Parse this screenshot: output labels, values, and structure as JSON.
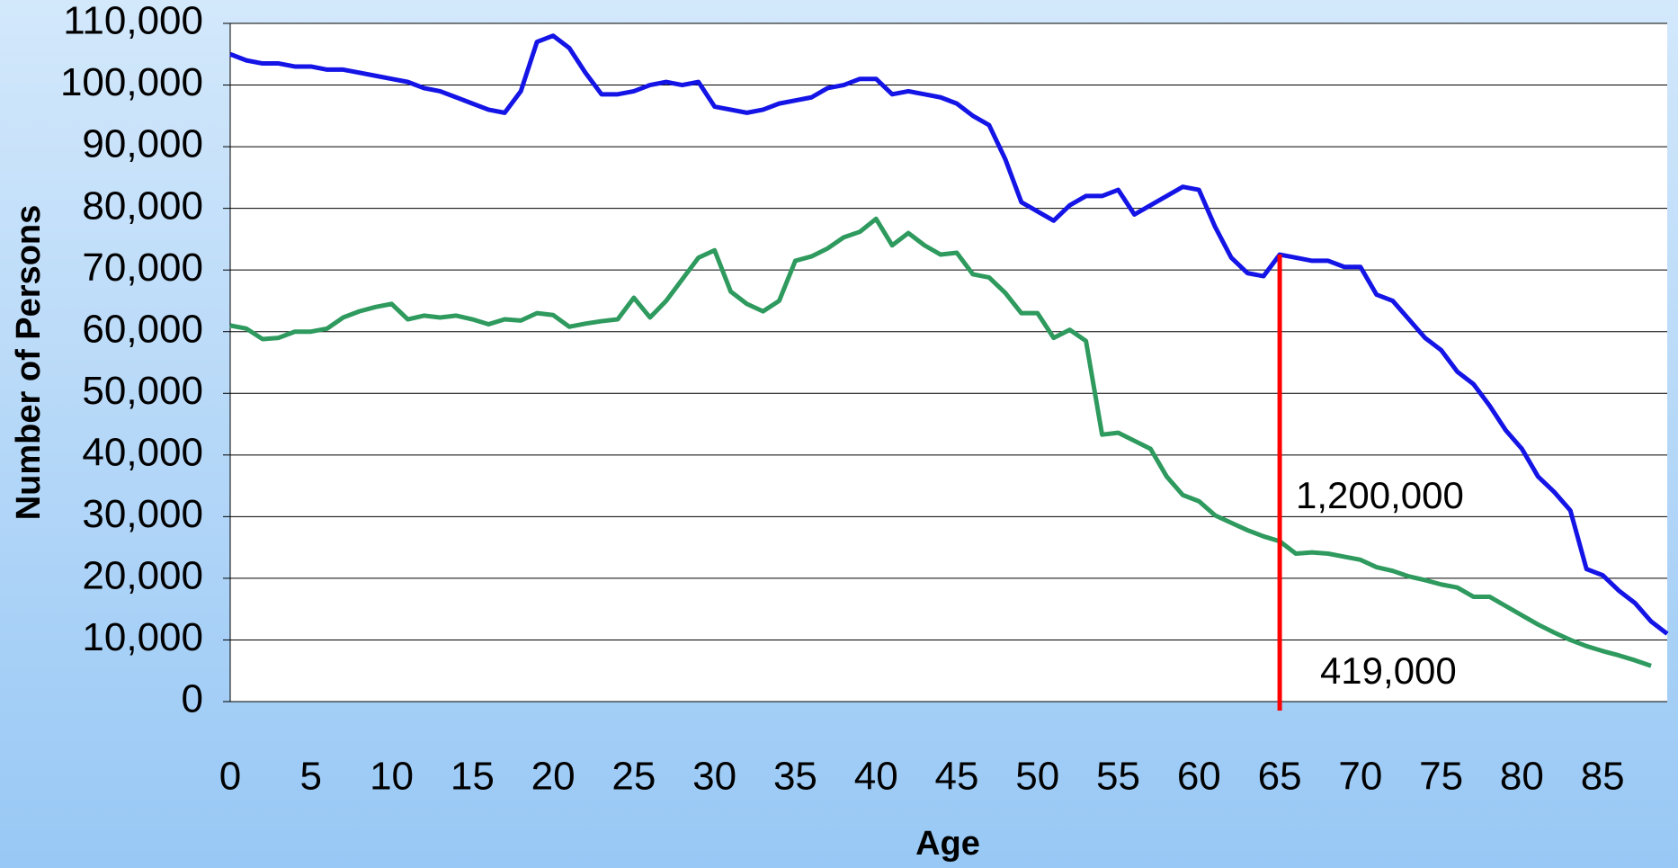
{
  "chart_data": {
    "type": "line",
    "x_label": "Age",
    "y_label": "Number of Persons",
    "x": [
      0,
      1,
      2,
      3,
      4,
      5,
      6,
      7,
      8,
      9,
      10,
      11,
      12,
      13,
      14,
      15,
      16,
      17,
      18,
      19,
      20,
      21,
      22,
      23,
      24,
      25,
      26,
      27,
      28,
      29,
      30,
      31,
      32,
      33,
      34,
      35,
      36,
      37,
      38,
      39,
      40,
      41,
      42,
      43,
      44,
      45,
      46,
      47,
      48,
      49,
      50,
      51,
      52,
      53,
      54,
      55,
      56,
      57,
      58,
      59,
      60,
      61,
      62,
      63,
      64,
      65,
      66,
      67,
      68,
      69,
      70,
      71,
      72,
      73,
      74,
      75,
      76,
      77,
      78,
      79,
      80,
      81,
      82,
      83,
      84,
      85,
      86,
      87,
      88,
      89
    ],
    "series": [
      {
        "color": "#1414e6",
        "values": [
          105000,
          104000,
          103500,
          103500,
          103000,
          103000,
          102500,
          102500,
          102000,
          101500,
          101000,
          100500,
          99500,
          99000,
          98000,
          97000,
          96000,
          95500,
          99000,
          107000,
          108000,
          106000,
          102000,
          98500,
          98500,
          99000,
          100000,
          100500,
          100000,
          100500,
          96500,
          96000,
          95500,
          96000,
          97000,
          97500,
          98000,
          99500,
          100000,
          101000,
          101000,
          98500,
          99000,
          98500,
          98000,
          97000,
          95000,
          93500,
          88000,
          81000,
          79500,
          78000,
          80500,
          82000,
          82000,
          83000,
          79000,
          80500,
          82000,
          83500,
          83000,
          77000,
          72000,
          69500,
          69000,
          72500,
          72000,
          71500,
          71500,
          70500,
          70500,
          66000,
          65000,
          62000,
          59000,
          57000,
          53500,
          51500,
          48000,
          44000,
          41000,
          36500,
          34000,
          31000,
          21500,
          20500,
          18000,
          16000,
          13000,
          11000
        ]
      },
      {
        "color": "#2e9a5e",
        "values": [
          61000,
          60500,
          58800,
          59000,
          60000,
          60000,
          60500,
          62300,
          63300,
          64000,
          64500,
          62000,
          62600,
          62300,
          62600,
          62000,
          61200,
          62000,
          61800,
          63000,
          62700,
          60800,
          61300,
          61700,
          62000,
          65500,
          62300,
          65000,
          68500,
          72000,
          73200,
          66500,
          64500,
          63300,
          65000,
          71500,
          72200,
          73500,
          75300,
          76200,
          78300,
          74000,
          76000,
          74000,
          72500,
          72800,
          69300,
          68800,
          66300,
          63000,
          63000,
          59000,
          60300,
          58500,
          43300,
          43600,
          42300,
          41000,
          36500,
          33500,
          32500,
          30200,
          29000,
          27800,
          26800,
          26000,
          24000,
          24200,
          24000,
          23500,
          23000,
          21800,
          21200,
          20300,
          19700,
          19000,
          18500,
          17000,
          17000,
          15500,
          14000,
          12500,
          11200,
          10000,
          9000,
          8200,
          7500,
          6700,
          5800,
          null
        ]
      }
    ],
    "xlim": [
      0,
      89
    ],
    "xticks": [
      0,
      5,
      10,
      15,
      20,
      25,
      30,
      35,
      40,
      45,
      50,
      55,
      60,
      65,
      70,
      75,
      80,
      85
    ],
    "ylim": [
      0,
      110000
    ],
    "yticks": [
      0,
      {
        "value": 10000,
        "label": "10,000"
      },
      {
        "value": 20000,
        "label": "20,000"
      },
      {
        "value": 30000,
        "label": "30,000"
      },
      {
        "value": 40000,
        "label": "40,000"
      },
      {
        "value": 50000,
        "label": "50,000"
      },
      {
        "value": 60000,
        "label": "60,000"
      },
      {
        "value": 70000,
        "label": "70,000"
      },
      {
        "value": 80000,
        "label": "80,000"
      },
      {
        "value": 90000,
        "label": "90,000"
      },
      {
        "value": 100000,
        "label": "100,000"
      },
      {
        "value": 110000,
        "label": "110,000"
      }
    ],
    "grid": true,
    "vline": {
      "x": 65,
      "color": "#ff0000"
    },
    "annotations": [
      {
        "text": "1,200,000",
        "x": 66,
        "y": 33000
      },
      {
        "text": "419,000",
        "x": 67.5,
        "y": 4500
      }
    ]
  }
}
